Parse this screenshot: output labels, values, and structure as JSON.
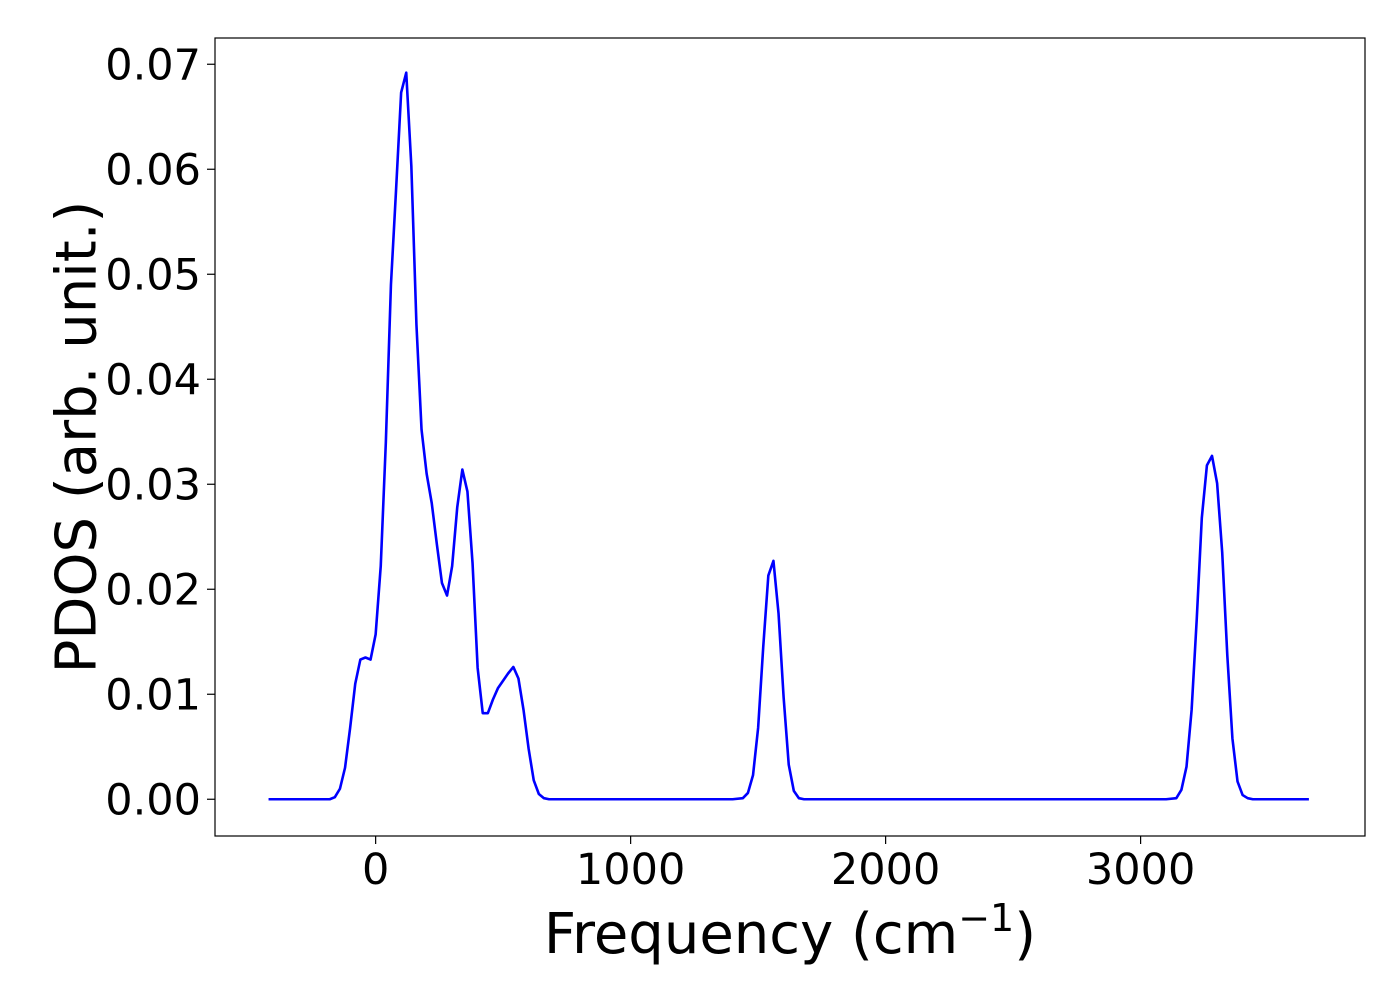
{
  "chart_data": {
    "type": "line",
    "title": "",
    "xlabel": "Frequency (cm",
    "xlabel_exponent": "−1",
    "xlabel_close": ")",
    "ylabel": "PDOS (arb. unit.)",
    "xlim": [
      -630,
      3880
    ],
    "ylim": [
      -0.0035,
      0.0725
    ],
    "x_ticks": [
      0,
      1000,
      2000,
      3000
    ],
    "x_tick_labels": [
      "0",
      "1000",
      "2000",
      "3000"
    ],
    "y_ticks": [
      0.0,
      0.01,
      0.02,
      0.03,
      0.04,
      0.05,
      0.06,
      0.07
    ],
    "y_tick_labels": [
      "0.00",
      "0.01",
      "0.02",
      "0.03",
      "0.04",
      "0.05",
      "0.06",
      "0.07"
    ],
    "grid": false,
    "legend": "none",
    "series": [
      {
        "color": "#0000ff",
        "x": [
          -420,
          -320,
          -220,
          -200,
          -180,
          -160,
          -140,
          -120,
          -100,
          -80,
          -60,
          -40,
          -20,
          0,
          20,
          40,
          60,
          80,
          100,
          120,
          140,
          160,
          180,
          200,
          220,
          240,
          260,
          280,
          300,
          320,
          340,
          360,
          380,
          400,
          420,
          440,
          460,
          480,
          500,
          520,
          540,
          560,
          580,
          600,
          620,
          640,
          660,
          680,
          700,
          720,
          760,
          800,
          900,
          1000,
          1100,
          1200,
          1300,
          1400,
          1440,
          1460,
          1480,
          1500,
          1520,
          1540,
          1560,
          1580,
          1600,
          1620,
          1640,
          1660,
          1680,
          1700,
          1720,
          1760,
          1800,
          2000,
          2500,
          3000,
          3100,
          3140,
          3160,
          3180,
          3200,
          3220,
          3240,
          3260,
          3280,
          3300,
          3320,
          3340,
          3360,
          3380,
          3400,
          3420,
          3440,
          3460,
          3480,
          3500,
          3520,
          3560,
          3600,
          3660
        ],
        "y": [
          0.0,
          0.0,
          0.0,
          0.0,
          0.0,
          0.0002,
          0.001,
          0.003,
          0.0068,
          0.011,
          0.0133,
          0.0135,
          0.0133,
          0.0157,
          0.0222,
          0.034,
          0.049,
          0.058,
          0.0673,
          0.0692,
          0.0603,
          0.0452,
          0.0352,
          0.031,
          0.0282,
          0.0243,
          0.0206,
          0.0194,
          0.0222,
          0.0278,
          0.0314,
          0.0293,
          0.0225,
          0.0125,
          0.0082,
          0.0082,
          0.0095,
          0.0106,
          0.0113,
          0.012,
          0.0126,
          0.0115,
          0.0085,
          0.0048,
          0.0018,
          0.0005,
          0.0001,
          0.0,
          0.0,
          0.0,
          0.0,
          0.0,
          0.0,
          0.0,
          0.0,
          0.0,
          0.0,
          0.0,
          0.0001,
          0.0006,
          0.0023,
          0.0068,
          0.0145,
          0.0213,
          0.0227,
          0.0177,
          0.0097,
          0.0033,
          0.0008,
          0.0001,
          0.0,
          0.0,
          0.0,
          0.0,
          0.0,
          0.0,
          0.0,
          0.0,
          0.0,
          0.0001,
          0.0009,
          0.0031,
          0.0085,
          0.0171,
          0.0268,
          0.0318,
          0.0327,
          0.0301,
          0.0235,
          0.0137,
          0.0058,
          0.0017,
          0.0004,
          0.0001,
          0.0,
          0.0,
          0.0,
          0.0,
          0.0,
          0.0,
          0.0,
          0.0
        ]
      }
    ]
  }
}
